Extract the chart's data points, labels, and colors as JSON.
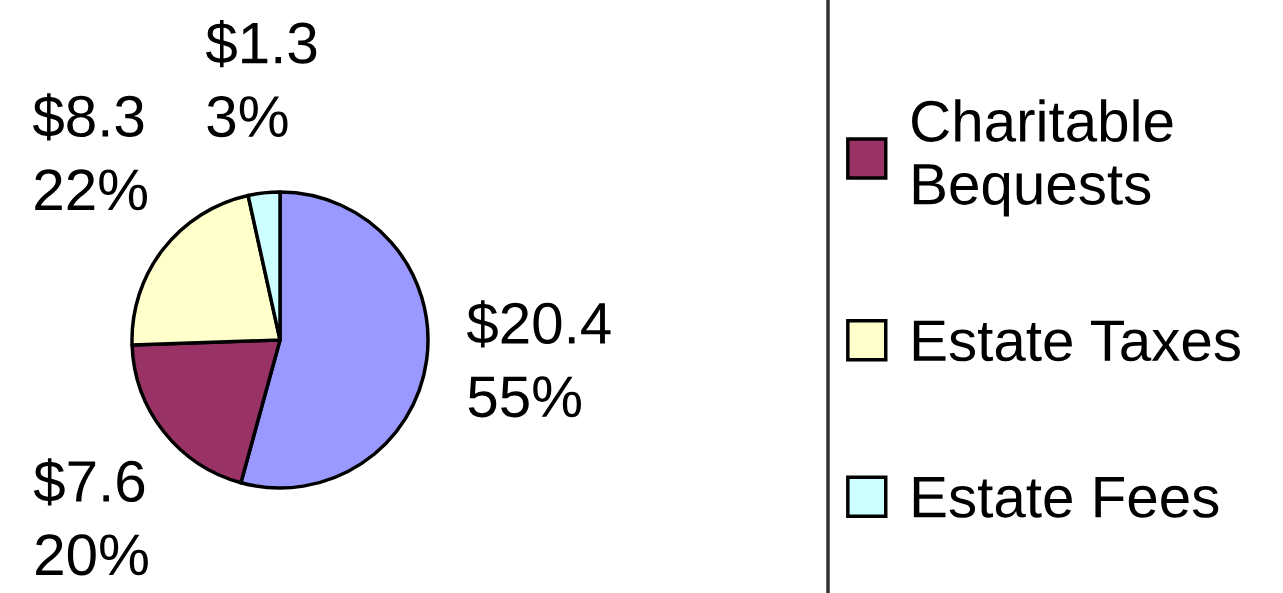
{
  "chart_data": {
    "type": "pie",
    "categories": [
      null,
      "Charitable\nBequests",
      "Estate Taxes",
      "Estate Fees"
    ],
    "values": [
      20.4,
      7.6,
      8.3,
      1.3
    ],
    "colors": [
      "#9999ff",
      "#993366",
      "#ffffcc",
      "#ccffff"
    ],
    "value_labels": [
      "$20.4\n55%",
      "$7.6\n20%",
      "$8.3\n22%",
      "$1.3\n3%"
    ],
    "legend": "right"
  }
}
